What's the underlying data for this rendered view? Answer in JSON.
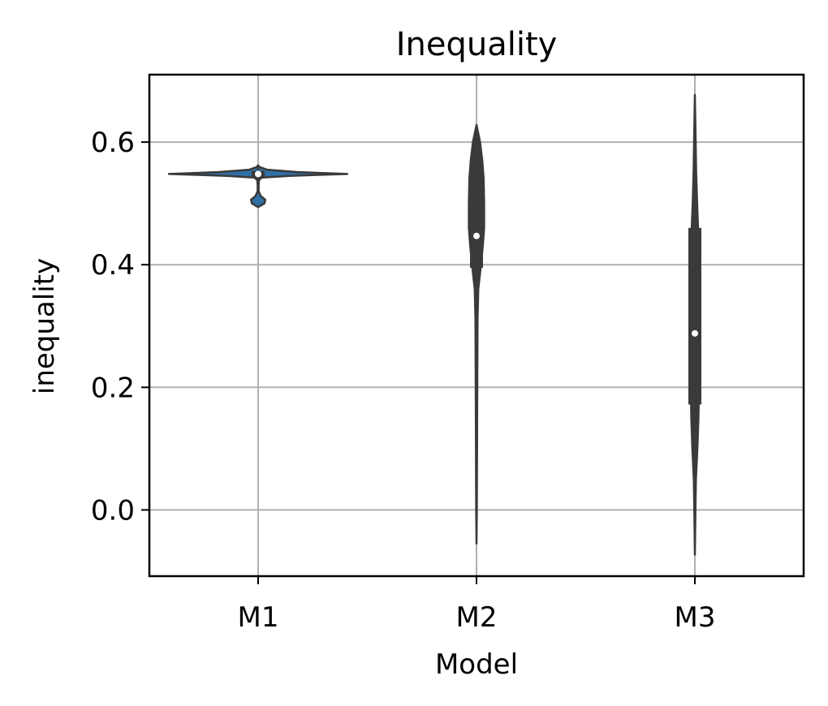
{
  "chart_data": {
    "type": "violin",
    "title": "Inequality",
    "xlabel": "Model",
    "ylabel": "inequality",
    "categories": [
      "M1",
      "M2",
      "M3"
    ],
    "y_ticks": [
      0.0,
      0.2,
      0.4,
      0.6
    ],
    "y_tick_labels": [
      "0.0",
      "0.2",
      "0.4",
      "0.6"
    ],
    "ylim": [
      -0.108,
      0.71
    ],
    "grid": true,
    "colors": {
      "violin_fill": "#3a3a3a",
      "m1_fill": "#2f6fa5",
      "grid": "#b0b0b0",
      "box": "#3a3a3a",
      "median": "#ffffff"
    },
    "violins": [
      {
        "category": "M1",
        "median": 0.548,
        "q1": 0.541,
        "q3": 0.553,
        "whisker_low": 0.536,
        "whisker_high": 0.558,
        "profile": [
          [
            0.494,
            0.0
          ],
          [
            0.5,
            0.07
          ],
          [
            0.506,
            0.08
          ],
          [
            0.512,
            0.03
          ],
          [
            0.52,
            0.005
          ],
          [
            0.53,
            0.005
          ],
          [
            0.538,
            0.01
          ],
          [
            0.542,
            0.04
          ],
          [
            0.545,
            0.35
          ],
          [
            0.548,
            1.0
          ],
          [
            0.551,
            0.45
          ],
          [
            0.555,
            0.1
          ],
          [
            0.559,
            0.02
          ],
          [
            0.562,
            0.0
          ]
        ]
      },
      {
        "category": "M2",
        "median": 0.447,
        "q1": 0.395,
        "q3": 0.558,
        "whisker_low": 0.305,
        "whisker_high": 0.62,
        "profile": [
          [
            -0.055,
            0.0
          ],
          [
            0.0,
            0.004
          ],
          [
            0.15,
            0.007
          ],
          [
            0.25,
            0.01
          ],
          [
            0.31,
            0.012
          ],
          [
            0.36,
            0.02
          ],
          [
            0.4,
            0.05
          ],
          [
            0.43,
            0.07
          ],
          [
            0.46,
            0.085
          ],
          [
            0.5,
            0.085
          ],
          [
            0.54,
            0.08
          ],
          [
            0.57,
            0.065
          ],
          [
            0.6,
            0.04
          ],
          [
            0.628,
            0.0
          ]
        ]
      },
      {
        "category": "M3",
        "median": 0.288,
        "q1": 0.172,
        "q3": 0.46,
        "whisker_low": 0.052,
        "whisker_high": 0.555,
        "profile": [
          [
            -0.073,
            0.0
          ],
          [
            0.0,
            0.006
          ],
          [
            0.05,
            0.012
          ],
          [
            0.1,
            0.028
          ],
          [
            0.15,
            0.04
          ],
          [
            0.2,
            0.045
          ],
          [
            0.25,
            0.05
          ],
          [
            0.3,
            0.05
          ],
          [
            0.35,
            0.05
          ],
          [
            0.4,
            0.045
          ],
          [
            0.45,
            0.038
          ],
          [
            0.5,
            0.025
          ],
          [
            0.55,
            0.015
          ],
          [
            0.6,
            0.009
          ],
          [
            0.677,
            0.0
          ]
        ]
      }
    ]
  }
}
